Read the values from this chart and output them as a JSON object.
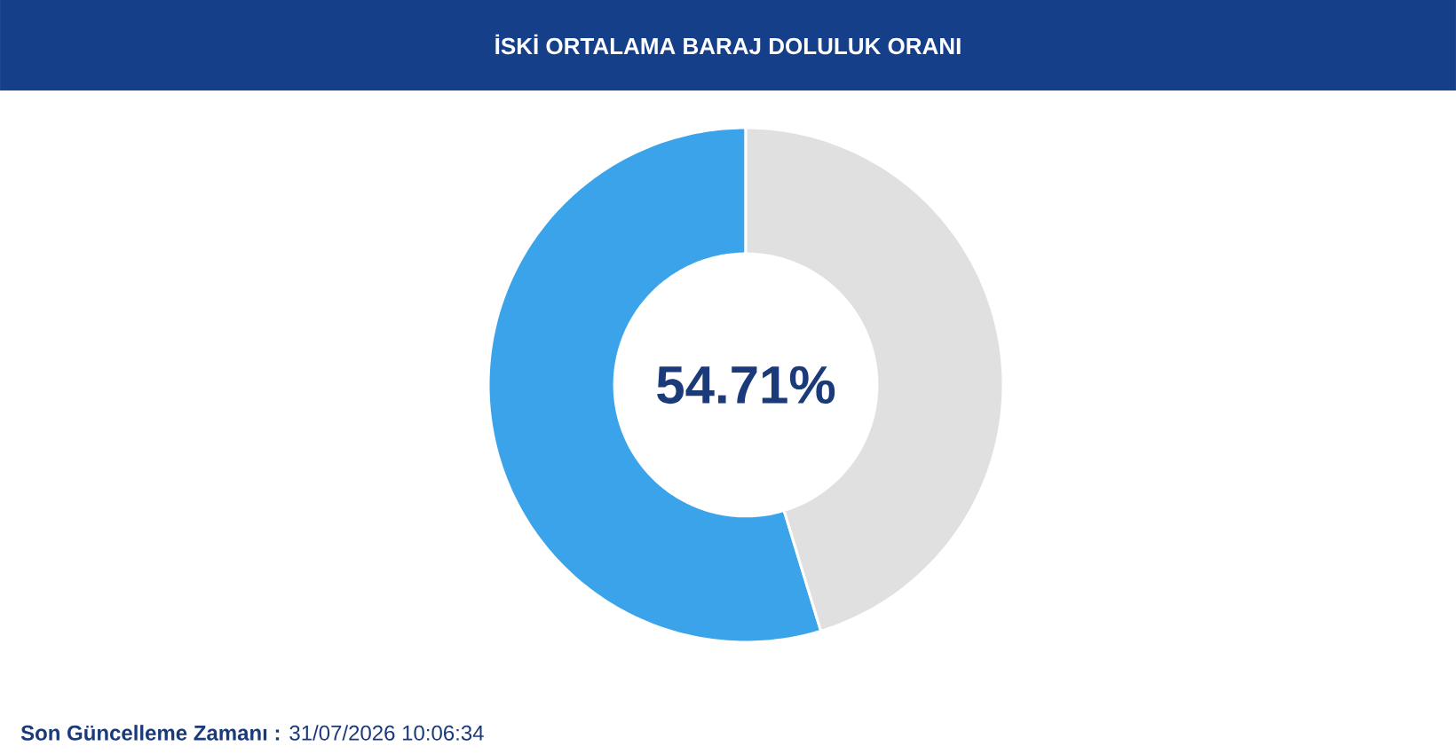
{
  "chart_data": {
    "type": "donut",
    "title": "İSKİ ORTALAMA BARAJ DOLULUK ORANI",
    "categories": [
      null,
      null
    ],
    "values": [
      54.71,
      45.29
    ],
    "colors": [
      "#3aa3ea",
      "#e0e0e0"
    ],
    "annotations": [
      "54.71%",
      "**Son Güncelleme Zamanı :** 31/07/2026 10:06:34"
    ]
  }
}
